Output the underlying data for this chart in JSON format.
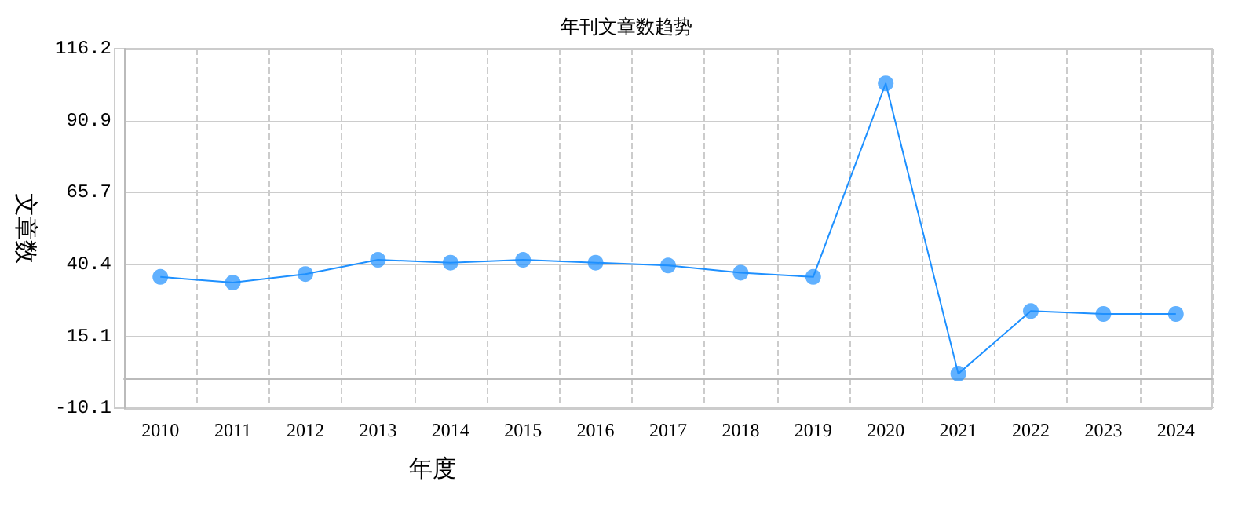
{
  "chart_data": {
    "type": "line",
    "title": "年刊文章数趋势",
    "xlabel": "年度",
    "ylabel": "文章数",
    "categories": [
      "2010",
      "2011",
      "2012",
      "2013",
      "2014",
      "2015",
      "2016",
      "2017",
      "2018",
      "2019",
      "2020",
      "2021",
      "2022",
      "2023",
      "2024"
    ],
    "series": [
      {
        "color": "#1e90ff",
        "values": [
          36,
          34,
          37,
          42,
          41,
          42,
          41,
          40,
          37.5,
          36,
          104,
          2,
          24,
          23,
          23
        ]
      }
    ],
    "ylim": [
      -10.1,
      116.2
    ],
    "yticks": [
      -10.1,
      15.1,
      40.4,
      65.7,
      90.9,
      116.2
    ],
    "grid": true,
    "marker": "circle",
    "line_style": "solid"
  }
}
